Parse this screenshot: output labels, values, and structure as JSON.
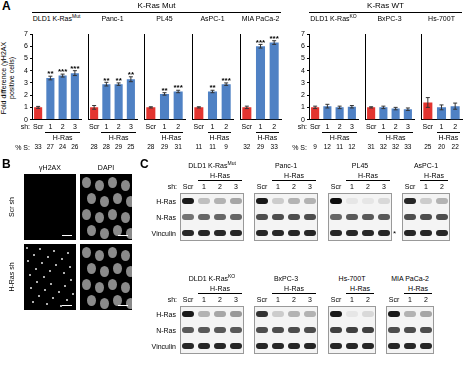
{
  "chart_data": [
    {
      "type": "bar",
      "group": "K-Ras Mut",
      "title": "DLD1 K-Ras",
      "title_sup": "Mut",
      "categories": [
        "Scr",
        "1",
        "2",
        "3"
      ],
      "values": [
        1,
        3.4,
        3.6,
        3.8
      ],
      "errors": [
        0.08,
        0.15,
        0.12,
        0.2
      ],
      "annotations": [
        null,
        "**",
        "***",
        "***"
      ],
      "percent_s": [
        33,
        27,
        24,
        26
      ],
      "colors": [
        "#e3342f",
        "#4f81c4",
        "#4f81c4",
        "#4f81c4"
      ],
      "ylim": [
        0,
        7
      ],
      "yticks": [
        0,
        1,
        2,
        3,
        4,
        5,
        6,
        7
      ],
      "grid": false
    },
    {
      "type": "bar",
      "group": "K-Ras Mut",
      "title": "Panc-1",
      "categories": [
        "Scr",
        "1",
        "2",
        "3"
      ],
      "values": [
        1,
        2.9,
        2.9,
        3.3
      ],
      "errors": [
        0.15,
        0.15,
        0.1,
        0.2
      ],
      "annotations": [
        null,
        "**",
        "**",
        "**"
      ],
      "percent_s": [
        28,
        28,
        29,
        25
      ],
      "colors": [
        "#e3342f",
        "#4f81c4",
        "#4f81c4",
        "#4f81c4"
      ],
      "ylim": [
        0,
        7
      ],
      "grid": false,
      "tick_labels": "x"
    },
    {
      "type": "bar",
      "group": "K-Ras Mut",
      "title": "PL45",
      "categories": [
        "Scr",
        "1",
        "2"
      ],
      "values": [
        1,
        2.1,
        2.3
      ],
      "errors": [
        0.05,
        0.1,
        0.1
      ],
      "annotations": [
        null,
        "**",
        "***"
      ],
      "percent_s": [
        28,
        29,
        31
      ],
      "colors": [
        "#e3342f",
        "#4f81c4",
        "#4f81c4"
      ],
      "ylim": [
        0,
        7
      ],
      "grid": false,
      "tick_labels": "x"
    },
    {
      "type": "bar",
      "group": "K-Ras Mut",
      "title": "AsPC-1",
      "categories": [
        "Scr",
        "1",
        "2"
      ],
      "values": [
        1,
        2.3,
        2.9
      ],
      "errors": [
        0.05,
        0.1,
        0.1
      ],
      "annotations": [
        null,
        "**",
        "***"
      ],
      "percent_s": [
        11,
        11,
        9
      ],
      "colors": [
        "#e3342f",
        "#4f81c4",
        "#4f81c4"
      ],
      "ylim": [
        0,
        7
      ],
      "grid": false,
      "tick_labels": "x"
    },
    {
      "type": "bar",
      "group": "K-Ras Mut",
      "title": "MIA PaCa-2",
      "categories": [
        "Scr",
        "1",
        "2"
      ],
      "values": [
        1,
        6.0,
        6.3
      ],
      "errors": [
        0.1,
        0.15,
        0.15
      ],
      "annotations": [
        null,
        "***",
        "***"
      ],
      "percent_s": [
        32,
        29,
        33
      ],
      "colors": [
        "#e3342f",
        "#4f81c4",
        "#4f81c4"
      ],
      "ylim": [
        0,
        7
      ],
      "grid": false,
      "tick_labels": "x"
    },
    {
      "type": "bar",
      "group": "K-Ras WT",
      "title": "DLD1 K-Ras",
      "title_sup": "KO",
      "categories": [
        "Scr",
        "1",
        "2",
        "3"
      ],
      "values": [
        1,
        1.1,
        1.0,
        1.05
      ],
      "errors": [
        0.1,
        0.15,
        0.1,
        0.1
      ],
      "percent_s": [
        9,
        12,
        11,
        12
      ],
      "colors": [
        "#e3342f",
        "#4f81c4",
        "#4f81c4",
        "#4f81c4"
      ],
      "ylim": [
        0,
        7
      ],
      "yticks": [
        0,
        1,
        2,
        3,
        4,
        5,
        6,
        7
      ],
      "grid": false
    },
    {
      "type": "bar",
      "group": "K-Ras WT",
      "title": "BxPC-3",
      "categories": [
        "Scr",
        "1",
        "2",
        "3"
      ],
      "values": [
        1,
        1.0,
        0.9,
        0.85
      ],
      "errors": [
        0.05,
        0.1,
        0.1,
        0.1
      ],
      "percent_s": [
        31,
        32,
        32,
        33
      ],
      "colors": [
        "#e3342f",
        "#4f81c4",
        "#4f81c4",
        "#4f81c4"
      ],
      "ylim": [
        0,
        7
      ],
      "grid": false,
      "tick_labels": "x"
    },
    {
      "type": "bar",
      "group": "K-Ras WT",
      "title": "Hs-700T",
      "categories": [
        "Scr",
        "1",
        "2"
      ],
      "values": [
        1.4,
        1.0,
        1.1
      ],
      "errors": [
        0.4,
        0.2,
        0.25
      ],
      "percent_s": [
        25,
        20,
        22
      ],
      "colors": [
        "#e3342f",
        "#4f81c4",
        "#4f81c4"
      ],
      "ylim": [
        0,
        7
      ],
      "grid": false,
      "tick_labels": "x"
    }
  ],
  "panel_a": {
    "letter": "A",
    "y_label": "Fold difference (γH2AX positive cells)",
    "sh_label": "sh:",
    "sh_group_label": "H-Ras",
    "percent_s_label": "% S:"
  },
  "panel_b": {
    "letter": "B",
    "columns": [
      "γH2AX",
      "DAPI"
    ],
    "rows": [
      "Scr sh",
      "H-Ras sh"
    ]
  },
  "panel_c": {
    "letter": "C",
    "sh_label": "sh:",
    "sh_group_label": "H-Ras",
    "row_labels": [
      "H-Ras",
      "N-Ras",
      "Vinculin"
    ],
    "rows": [
      [
        {
          "title": "DLD1 K-Ras",
          "title_sup": "Mut",
          "lanes": [
            "Scr",
            "1",
            "2",
            "3"
          ],
          "bands": [
            [
              0.9,
              0.25,
              0.3,
              0.35
            ],
            [
              0.55,
              0.6,
              0.6,
              0.6
            ],
            [
              0.85,
              0.85,
              0.85,
              0.85
            ]
          ]
        },
        {
          "title": "Panc-1",
          "lanes": [
            "Scr",
            "1",
            "2",
            "3"
          ],
          "bands": [
            [
              0.9,
              0.2,
              0.3,
              0.3
            ],
            [
              0.7,
              0.7,
              0.7,
              0.7
            ],
            [
              0.85,
              0.85,
              0.85,
              0.85
            ]
          ]
        },
        {
          "title": "PL45",
          "lanes": [
            "Scr",
            "1",
            "2",
            "3"
          ],
          "bands": [
            [
              0.95,
              0.1,
              0.1,
              0.15
            ],
            [
              0.6,
              0.65,
              0.65,
              0.65
            ],
            [
              0.85,
              0.85,
              0.85,
              0.85
            ]
          ],
          "annotation": {
            "row": "Vinculin",
            "text": "*"
          }
        },
        {
          "title": "AsPC-1",
          "lanes": [
            "Scr",
            "1",
            "2"
          ],
          "bands": [
            [
              0.85,
              0.2,
              0.3
            ],
            [
              0.7,
              0.7,
              0.7
            ],
            [
              0.85,
              0.85,
              0.85
            ]
          ]
        }
      ],
      [
        {
          "title": "DLD1 K-Ras",
          "title_sup": "KO",
          "lanes": [
            "Scr",
            "1",
            "2",
            "3"
          ],
          "bands": [
            [
              0.9,
              0.3,
              0.35,
              0.4
            ],
            [
              0.65,
              0.65,
              0.65,
              0.65
            ],
            [
              0.85,
              0.85,
              0.85,
              0.85
            ]
          ]
        },
        {
          "title": "BxPC-3",
          "lanes": [
            "Scr",
            "1",
            "2",
            "3"
          ],
          "bands": [
            [
              0.8,
              0.2,
              0.3,
              0.3
            ],
            [
              0.7,
              0.7,
              0.7,
              0.7
            ],
            [
              0.85,
              0.85,
              0.85,
              0.85
            ]
          ]
        },
        {
          "title": "Hs-700T",
          "lanes": [
            "Scr",
            "1",
            "2"
          ],
          "bands": [
            [
              0.9,
              0.1,
              0.15
            ],
            [
              0.75,
              0.75,
              0.75
            ],
            [
              0.85,
              0.85,
              0.85
            ]
          ]
        },
        {
          "title": "MIA PaCa-2",
          "lanes": [
            "Scr",
            "1",
            "2"
          ],
          "bands": [
            [
              0.9,
              0.3,
              0.35
            ],
            [
              0.7,
              0.7,
              0.7
            ],
            [
              0.85,
              0.85,
              0.85
            ]
          ]
        }
      ]
    ]
  }
}
